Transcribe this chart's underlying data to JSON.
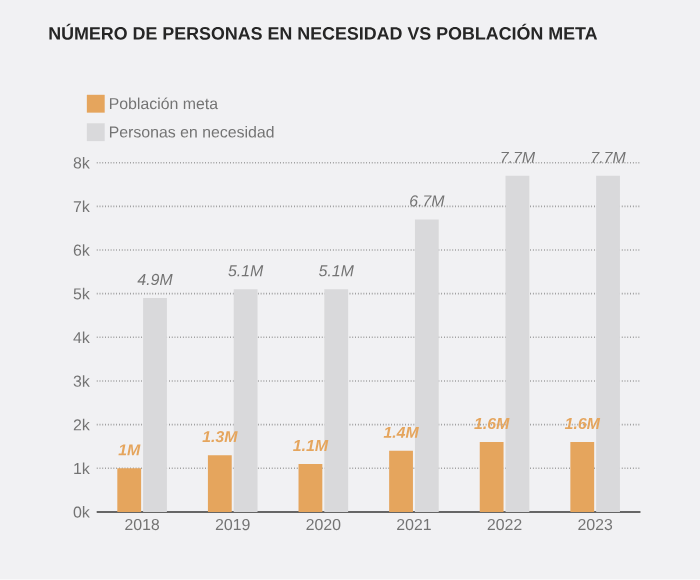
{
  "chart_data": {
    "type": "bar",
    "title": "NÚMERO DE PERSONAS EN NECESIDAD VS POBLACIÓN META",
    "categories": [
      "2018",
      "2019",
      "2020",
      "2021",
      "2022",
      "2023"
    ],
    "series": [
      {
        "name": "Población meta",
        "color": "#e5a55d",
        "values": [
          1.0,
          1.3,
          1.1,
          1.4,
          1.6,
          1.6
        ],
        "value_labels": [
          "1M",
          "1.3M",
          "1.1M",
          "1.4M",
          "1.6M",
          "1.6M"
        ]
      },
      {
        "name": "Personas en necesidad",
        "color": "#d9d9db",
        "values": [
          4.9,
          5.1,
          5.1,
          6.7,
          7.7,
          7.7
        ],
        "value_labels": [
          "4.9M",
          "5.1M",
          "5.1M",
          "6.7M",
          "7.7M",
          "7.7M"
        ]
      }
    ],
    "ylim": [
      0,
      8
    ],
    "yticks": [
      {
        "value": 0,
        "label": "0k"
      },
      {
        "value": 1,
        "label": "1k"
      },
      {
        "value": 2,
        "label": "2k"
      },
      {
        "value": 3,
        "label": "3k"
      },
      {
        "value": 4,
        "label": "4k"
      },
      {
        "value": 5,
        "label": "5k"
      },
      {
        "value": 6,
        "label": "6k"
      },
      {
        "value": 7,
        "label": "7k"
      },
      {
        "value": 8,
        "label": "8k"
      }
    ],
    "grid": "y",
    "legend": "top left"
  }
}
